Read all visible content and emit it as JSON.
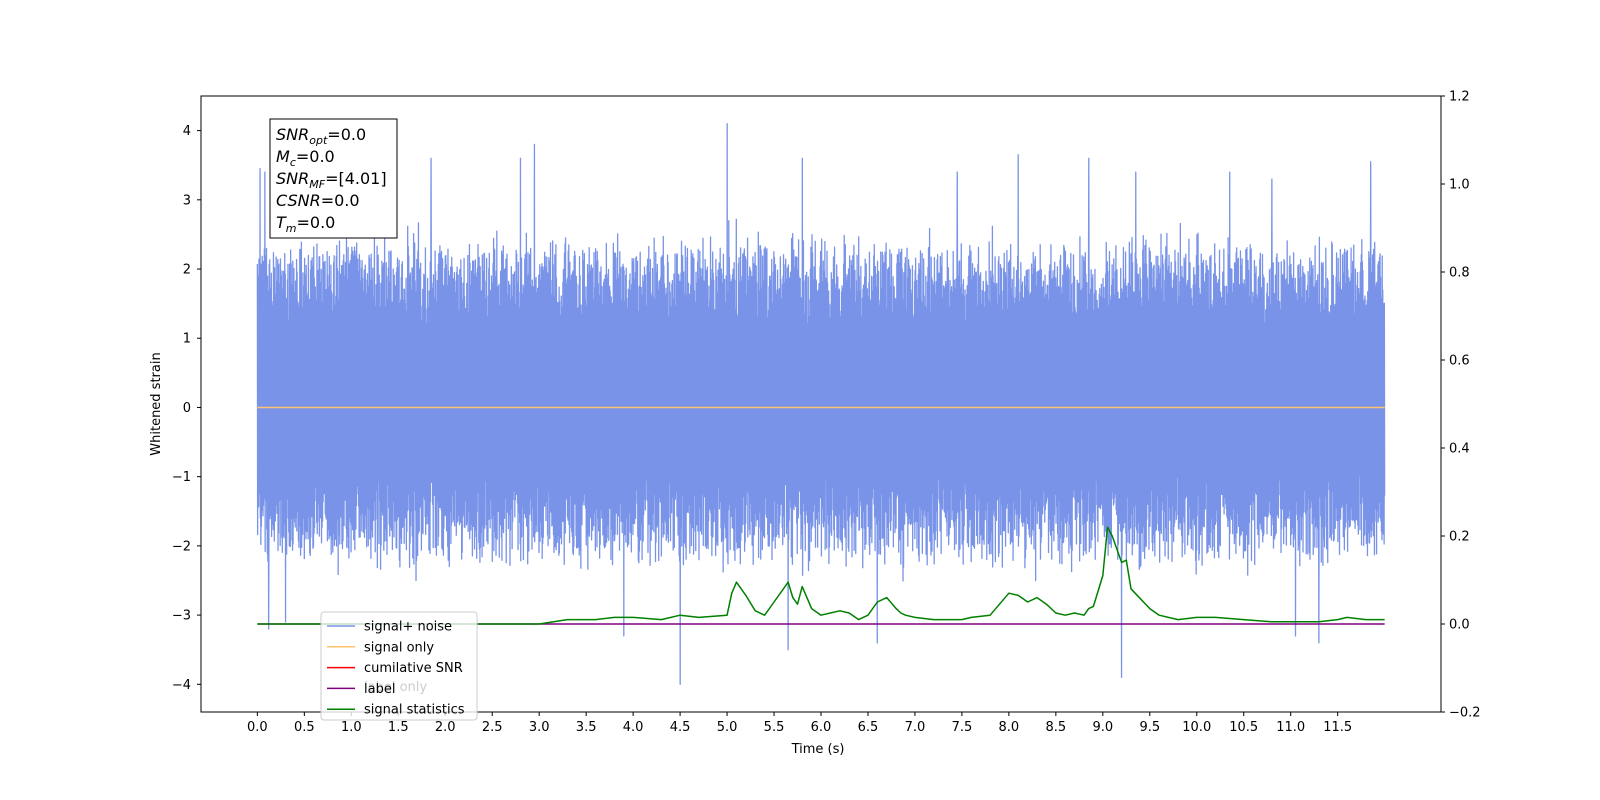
{
  "chart_data": {
    "type": "line",
    "xlabel": "Time (s)",
    "ylabel": "Whitened strain",
    "xlim": [
      -0.6,
      12.6
    ],
    "ylim": [
      -4.4,
      4.5
    ],
    "y2lim": [
      -0.2,
      1.2
    ],
    "x_ticks": [
      "0.0",
      "0.5",
      "1.0",
      "1.5",
      "2.0",
      "2.5",
      "3.0",
      "3.5",
      "4.0",
      "4.5",
      "5.0",
      "5.5",
      "6.0",
      "6.5",
      "7.0",
      "7.5",
      "8.0",
      "8.5",
      "9.0",
      "9.5",
      "10.0",
      "10.5",
      "11.0",
      "11.5"
    ],
    "y_ticks": [
      "4",
      "3",
      "2",
      "1",
      "0",
      "−1",
      "−2",
      "−3",
      "−4"
    ],
    "y2_ticks": [
      "1.2",
      "1.0",
      "0.8",
      "0.6",
      "0.4",
      "0.2",
      "0.0",
      "−0.2"
    ],
    "legend": {
      "location": "lower-left",
      "entries": [
        {
          "label": "signal+ noise",
          "color": "#7893e8"
        },
        {
          "label": "signal only",
          "color": "#ffc46e"
        },
        {
          "label": "cumilative SNR",
          "color": "#ff0000"
        },
        {
          "label": "label",
          "color": "#800080"
        },
        {
          "label": "signal statistics",
          "color": "#008000"
        }
      ],
      "occluded_text": [
        "label only"
      ]
    },
    "stats_box": {
      "lines": [
        {
          "symbol": "SNR",
          "sub": "opt",
          "value": "=0.0"
        },
        {
          "symbol": "M",
          "sub": "c",
          "value": "=0.0"
        },
        {
          "symbol": "SNR",
          "sub": "MF",
          "value": "=[4.01]"
        },
        {
          "symbol": "CSNR",
          "sub": "",
          "value": "=0.0"
        },
        {
          "symbol": "T",
          "sub": "m",
          "value": "=0.0"
        }
      ]
    },
    "series": [
      {
        "name": "signal+ noise",
        "axis": "left",
        "color": "#7893e8",
        "description_stats": {
          "x_start": 0.0,
          "x_end": 12.0,
          "typical_min": -2.1,
          "typical_max": 2.3
        },
        "peaks": [
          {
            "x": 0.03,
            "y": 3.45
          },
          {
            "x": 0.08,
            "y": 3.4
          },
          {
            "x": 0.12,
            "y": -3.2
          },
          {
            "x": 0.3,
            "y": -3.1
          },
          {
            "x": 1.85,
            "y": 3.6
          },
          {
            "x": 2.8,
            "y": 3.6
          },
          {
            "x": 2.95,
            "y": 3.8
          },
          {
            "x": 3.9,
            "y": -3.3
          },
          {
            "x": 4.5,
            "y": -4.0
          },
          {
            "x": 5.0,
            "y": 4.1
          },
          {
            "x": 5.65,
            "y": -3.5
          },
          {
            "x": 5.8,
            "y": 3.6
          },
          {
            "x": 6.6,
            "y": -3.4
          },
          {
            "x": 7.45,
            "y": 3.4
          },
          {
            "x": 8.1,
            "y": 3.65
          },
          {
            "x": 8.85,
            "y": 3.6
          },
          {
            "x": 9.2,
            "y": -3.9
          },
          {
            "x": 9.35,
            "y": 3.4
          },
          {
            "x": 10.35,
            "y": 3.4
          },
          {
            "x": 10.8,
            "y": 3.3
          },
          {
            "x": 11.05,
            "y": -3.3
          },
          {
            "x": 11.3,
            "y": -3.4
          },
          {
            "x": 11.85,
            "y": 3.55
          }
        ]
      },
      {
        "name": "signal only",
        "axis": "left",
        "color": "#ffc46e",
        "x": [
          0.0,
          12.0
        ],
        "y": [
          0.0,
          0.0
        ]
      },
      {
        "name": "label",
        "axis": "right",
        "color": "#800080",
        "x": [
          0.0,
          12.0
        ],
        "y": [
          0.0,
          0.0
        ]
      },
      {
        "name": "signal statistics",
        "axis": "right",
        "color": "#008000",
        "x": [
          0.0,
          3.0,
          3.3,
          3.6,
          3.8,
          4.0,
          4.3,
          4.5,
          4.7,
          5.0,
          5.05,
          5.1,
          5.15,
          5.2,
          5.3,
          5.4,
          5.5,
          5.6,
          5.65,
          5.7,
          5.75,
          5.8,
          5.85,
          5.9,
          6.0,
          6.1,
          6.2,
          6.3,
          6.4,
          6.5,
          6.6,
          6.7,
          6.8,
          6.85,
          6.9,
          7.0,
          7.2,
          7.5,
          7.6,
          7.8,
          8.0,
          8.1,
          8.2,
          8.3,
          8.4,
          8.5,
          8.6,
          8.7,
          8.8,
          8.85,
          8.9,
          9.0,
          9.05,
          9.1,
          9.2,
          9.25,
          9.3,
          9.5,
          9.6,
          9.8,
          10.0,
          10.2,
          10.5,
          10.8,
          11.0,
          11.3,
          11.5,
          11.6,
          11.8,
          12.0
        ],
        "y": [
          0.0,
          0.0,
          0.01,
          0.01,
          0.015,
          0.015,
          0.01,
          0.02,
          0.015,
          0.02,
          0.07,
          0.095,
          0.08,
          0.065,
          0.03,
          0.02,
          0.05,
          0.08,
          0.095,
          0.06,
          0.045,
          0.085,
          0.06,
          0.035,
          0.02,
          0.025,
          0.03,
          0.025,
          0.01,
          0.02,
          0.05,
          0.06,
          0.035,
          0.025,
          0.02,
          0.015,
          0.01,
          0.01,
          0.015,
          0.02,
          0.07,
          0.065,
          0.05,
          0.06,
          0.045,
          0.025,
          0.02,
          0.025,
          0.02,
          0.035,
          0.04,
          0.11,
          0.22,
          0.2,
          0.14,
          0.145,
          0.08,
          0.035,
          0.02,
          0.01,
          0.015,
          0.015,
          0.01,
          0.005,
          0.005,
          0.005,
          0.01,
          0.015,
          0.01,
          0.01
        ]
      }
    ]
  }
}
